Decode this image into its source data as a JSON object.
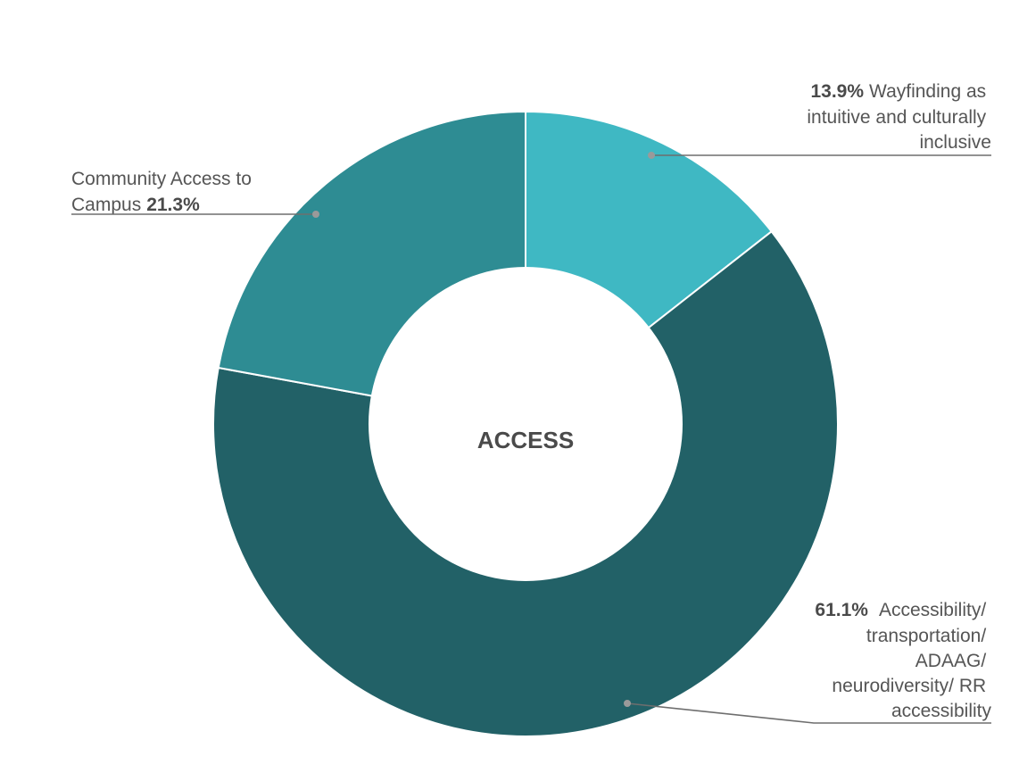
{
  "chart_data": {
    "type": "pie",
    "center_label": "ACCESS",
    "legend": "none",
    "slices": [
      {
        "label_lines": [
          "Wayfinding as",
          "intuitive and culturally",
          "inclusive"
        ],
        "value": 13.9,
        "value_text": "13.9%",
        "color": "#3fb8c3"
      },
      {
        "label_lines": [
          "Accessibility/",
          "transportation/",
          "ADAAG/",
          "neurodiversity/ RR",
          "accessibility"
        ],
        "value": 61.1,
        "value_text": "61.1%",
        "color": "#226167"
      },
      {
        "label_lines": [
          "Community Access to",
          "Campus"
        ],
        "value": 21.3,
        "value_text": "21.3%",
        "color": "#2e8c93"
      }
    ]
  }
}
